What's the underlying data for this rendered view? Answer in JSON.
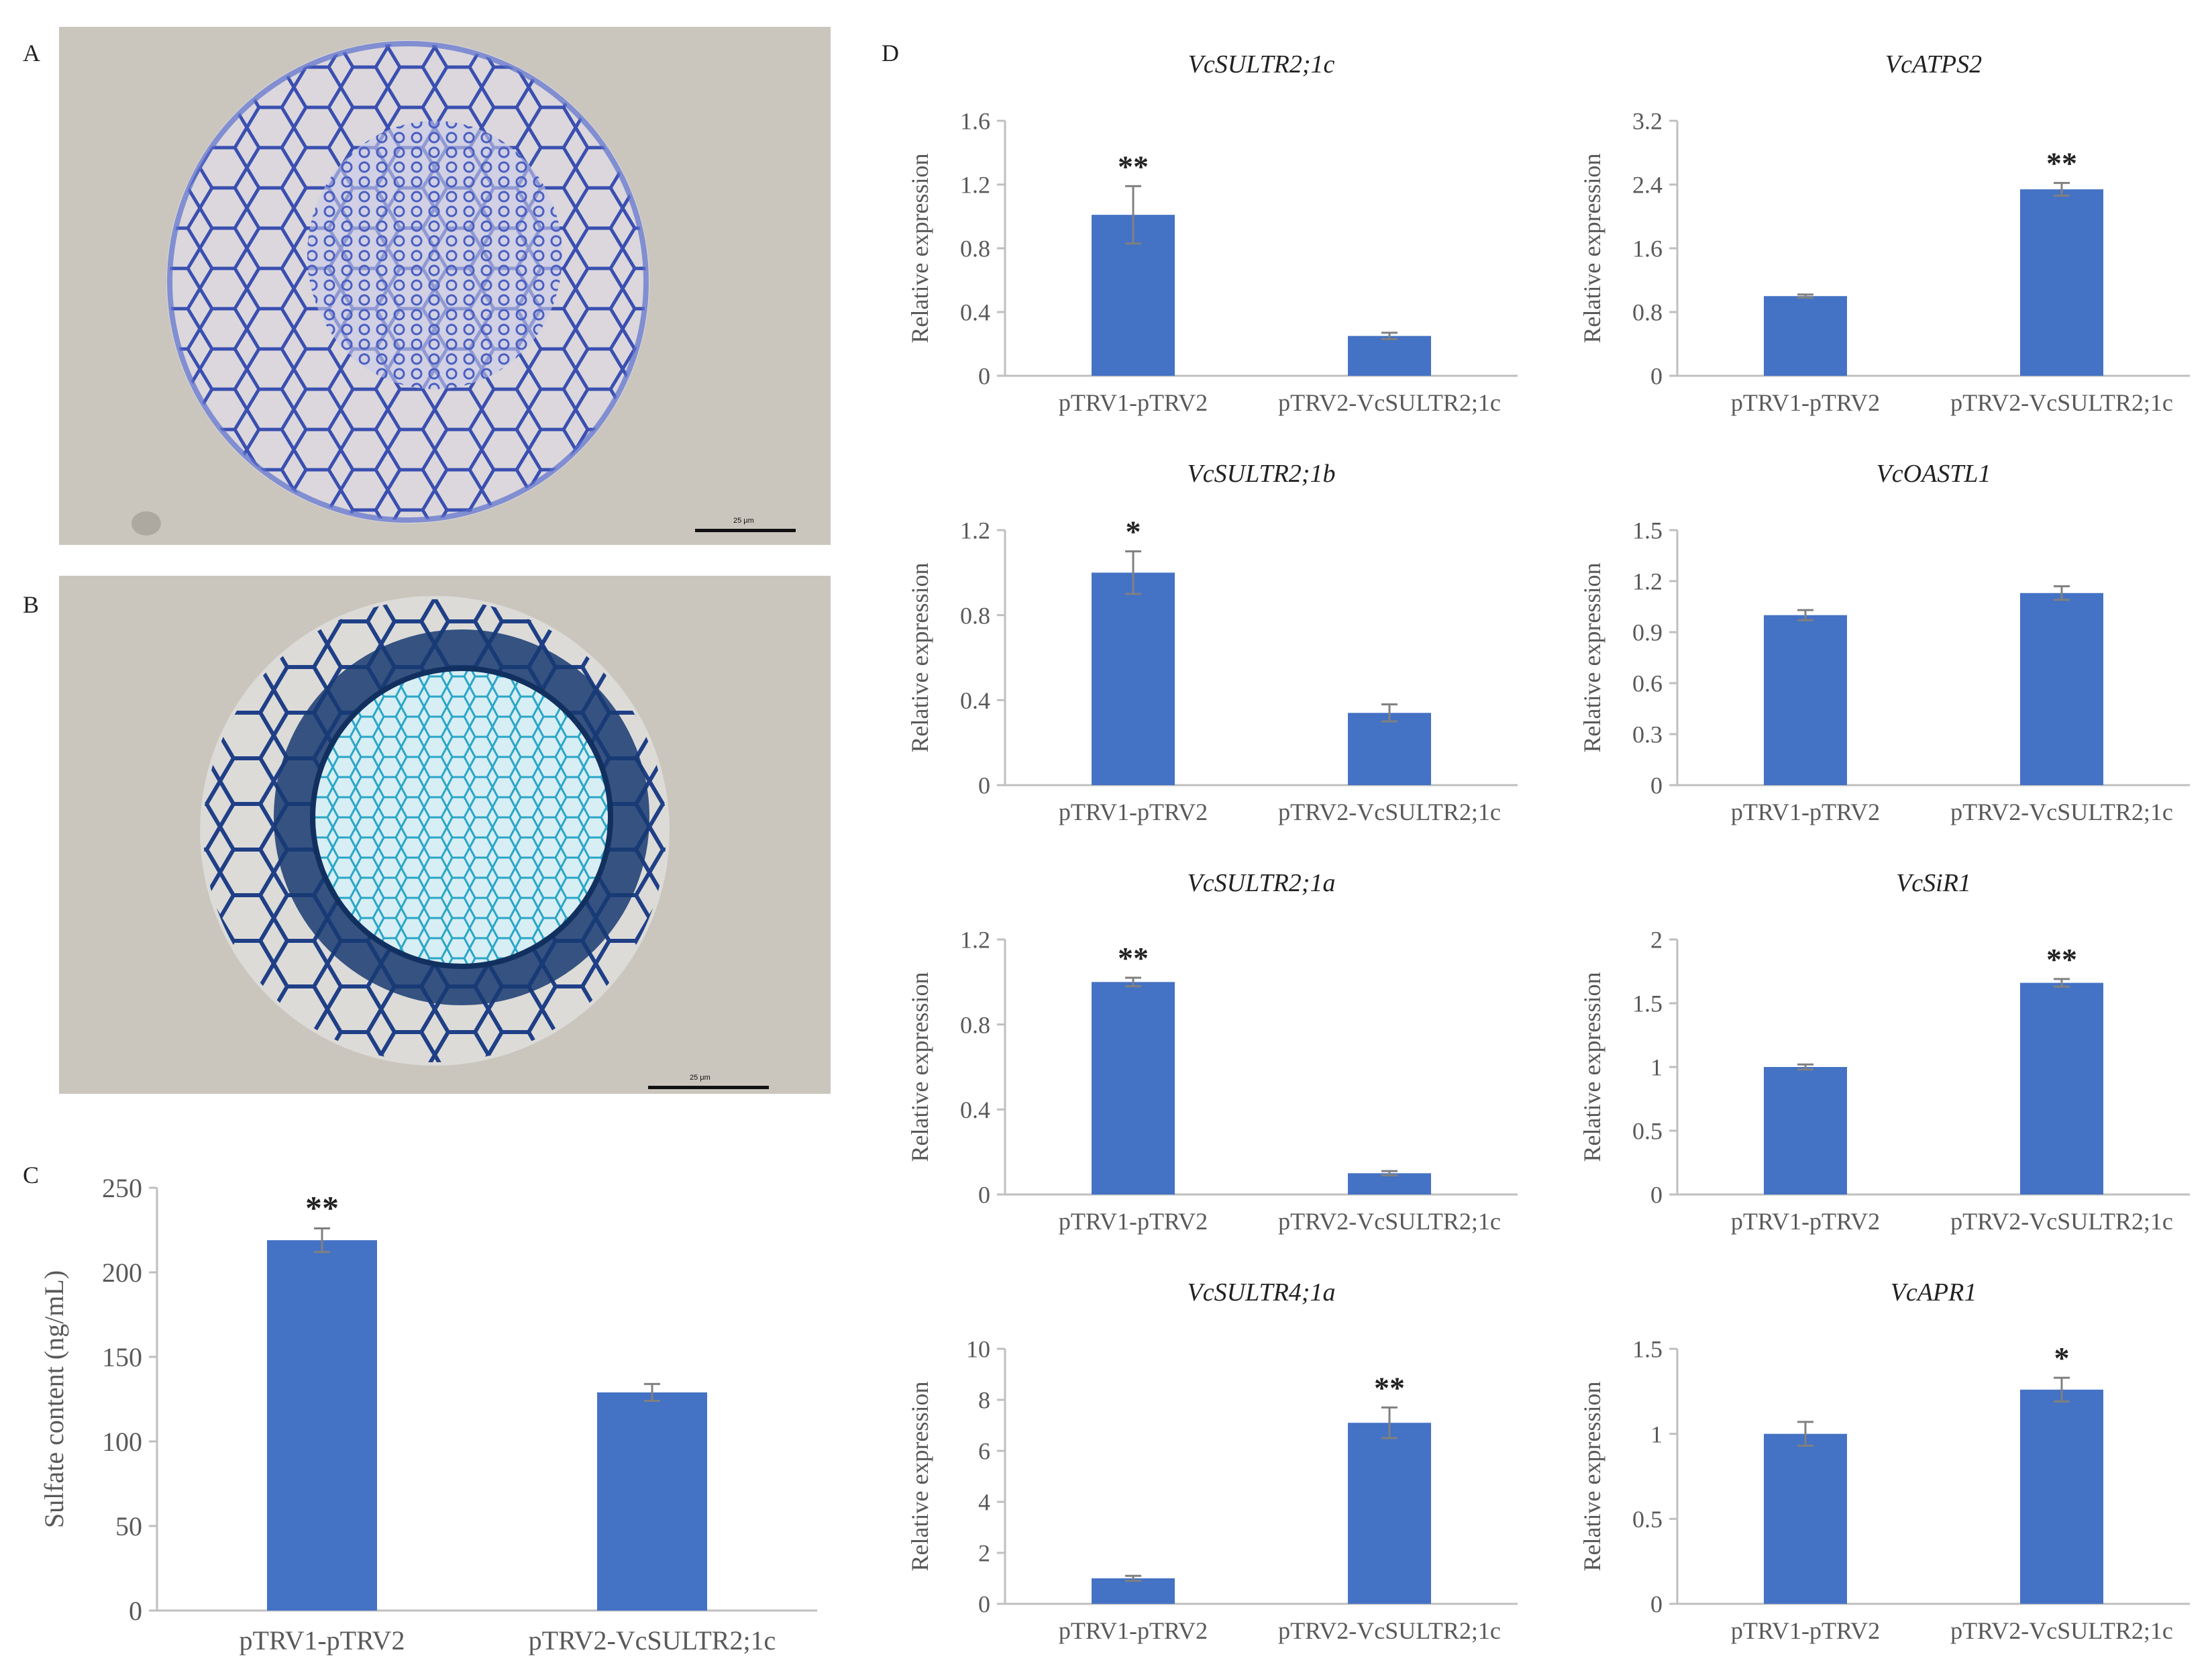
{
  "panels": {
    "a": "A",
    "b": "B",
    "c": "C",
    "d": "D"
  },
  "micrographs": {
    "a": {
      "scale_bar_label": "25 μm"
    },
    "b": {
      "scale_bar_label": "25 μm"
    }
  },
  "colors": {
    "bar": "#4472C4",
    "axis_text": "#595959",
    "error_bar": "#808080",
    "axis_line": "#BFBFBF",
    "stain_a": "#3a4fb0",
    "stain_b_outer": "#1f3f86",
    "stain_b_inner": "#2aa6c8",
    "background_photo": "#cac6bd"
  },
  "chart_data": [
    {
      "id": "C",
      "type": "bar",
      "title": "",
      "categories": [
        "pTRV1-pTRV2",
        "pTRV2-VcSULTR2;1c"
      ],
      "values": [
        219,
        129
      ],
      "errors": [
        7,
        5
      ],
      "significance": [
        "**",
        ""
      ],
      "ylabel": "Sulfate content (ng/mL)",
      "ylim": [
        0,
        250
      ],
      "yticks": [
        "0",
        "50",
        "100",
        "150",
        "200",
        "250"
      ]
    },
    {
      "id": "D1",
      "type": "bar",
      "title": "VcSULTR2;1c",
      "categories": [
        "pTRV1-pTRV2",
        "pTRV2-VcSULTR2;1c"
      ],
      "values": [
        1.01,
        0.25
      ],
      "errors": [
        0.18,
        0.02
      ],
      "significance": [
        "**",
        ""
      ],
      "ylabel": "Relative expression",
      "ylim": [
        0,
        1.6
      ],
      "yticks": [
        "0",
        "0.4",
        "0.8",
        "1.2",
        "1.6"
      ]
    },
    {
      "id": "D2",
      "type": "bar",
      "title": "VcATPS2",
      "categories": [
        "pTRV1-pTRV2",
        "pTRV2-VcSULTR2;1c"
      ],
      "values": [
        1.0,
        2.34
      ],
      "errors": [
        0.02,
        0.08
      ],
      "significance": [
        "",
        "**"
      ],
      "ylabel": "Relative expression",
      "ylim": [
        0,
        3.2
      ],
      "yticks": [
        "0",
        "0.8",
        "1.6",
        "2.4",
        "3.2"
      ]
    },
    {
      "id": "D3",
      "type": "bar",
      "title": "VcSULTR2;1b",
      "categories": [
        "pTRV1-pTRV2",
        "pTRV2-VcSULTR2;1c"
      ],
      "values": [
        1.0,
        0.34
      ],
      "errors": [
        0.1,
        0.04
      ],
      "significance": [
        "*",
        ""
      ],
      "ylabel": "Relative expression",
      "ylim": [
        0,
        1.2
      ],
      "yticks": [
        "0",
        "0.4",
        "0.8",
        "1.2"
      ]
    },
    {
      "id": "D4",
      "type": "bar",
      "title": "VcOASTL1",
      "categories": [
        "pTRV1-pTRV2",
        "pTRV2-VcSULTR2;1c"
      ],
      "values": [
        1.0,
        1.13
      ],
      "errors": [
        0.03,
        0.04
      ],
      "significance": [
        "",
        ""
      ],
      "ylabel": "Relative expression",
      "ylim": [
        0,
        1.5
      ],
      "yticks": [
        "0",
        "0.3",
        "0.6",
        "0.9",
        "1.2",
        "1.5"
      ]
    },
    {
      "id": "D5",
      "type": "bar",
      "title": "VcSULTR2;1a",
      "categories": [
        "pTRV1-pTRV2",
        "pTRV2-VcSULTR2;1c"
      ],
      "values": [
        1.0,
        0.1
      ],
      "errors": [
        0.02,
        0.01
      ],
      "significance": [
        "**",
        ""
      ],
      "ylabel": "Relative expression",
      "ylim": [
        0,
        1.2
      ],
      "yticks": [
        "0",
        "0.4",
        "0.8",
        "1.2"
      ]
    },
    {
      "id": "D6",
      "type": "bar",
      "title": "VcSiR1",
      "categories": [
        "pTRV1-pTRV2",
        "pTRV2-VcSULTR2;1c"
      ],
      "values": [
        1.0,
        1.66
      ],
      "errors": [
        0.02,
        0.03
      ],
      "significance": [
        "",
        "**"
      ],
      "ylabel": "Relative expression",
      "ylim": [
        0,
        2
      ],
      "yticks": [
        "0",
        "0.5",
        "1",
        "1.5",
        "2"
      ]
    },
    {
      "id": "D7",
      "type": "bar",
      "title": "VcSULTR4;1a",
      "categories": [
        "pTRV1-pTRV2",
        "pTRV2-VcSULTR2;1c"
      ],
      "values": [
        1.0,
        7.1
      ],
      "errors": [
        0.1,
        0.6
      ],
      "significance": [
        "",
        "**"
      ],
      "ylabel": "Relative expression",
      "ylim": [
        0,
        10
      ],
      "yticks": [
        "0",
        "2",
        "4",
        "6",
        "8",
        "10"
      ]
    },
    {
      "id": "D8",
      "type": "bar",
      "title": "VcAPR1",
      "categories": [
        "pTRV1-pTRV2",
        "pTRV2-VcSULTR2;1c"
      ],
      "values": [
        1.0,
        1.26
      ],
      "errors": [
        0.07,
        0.07
      ],
      "significance": [
        "",
        "*"
      ],
      "ylabel": "Relative expression",
      "ylim": [
        0,
        1.5
      ],
      "yticks": [
        "0",
        "0.5",
        "1",
        "1.5"
      ]
    }
  ]
}
